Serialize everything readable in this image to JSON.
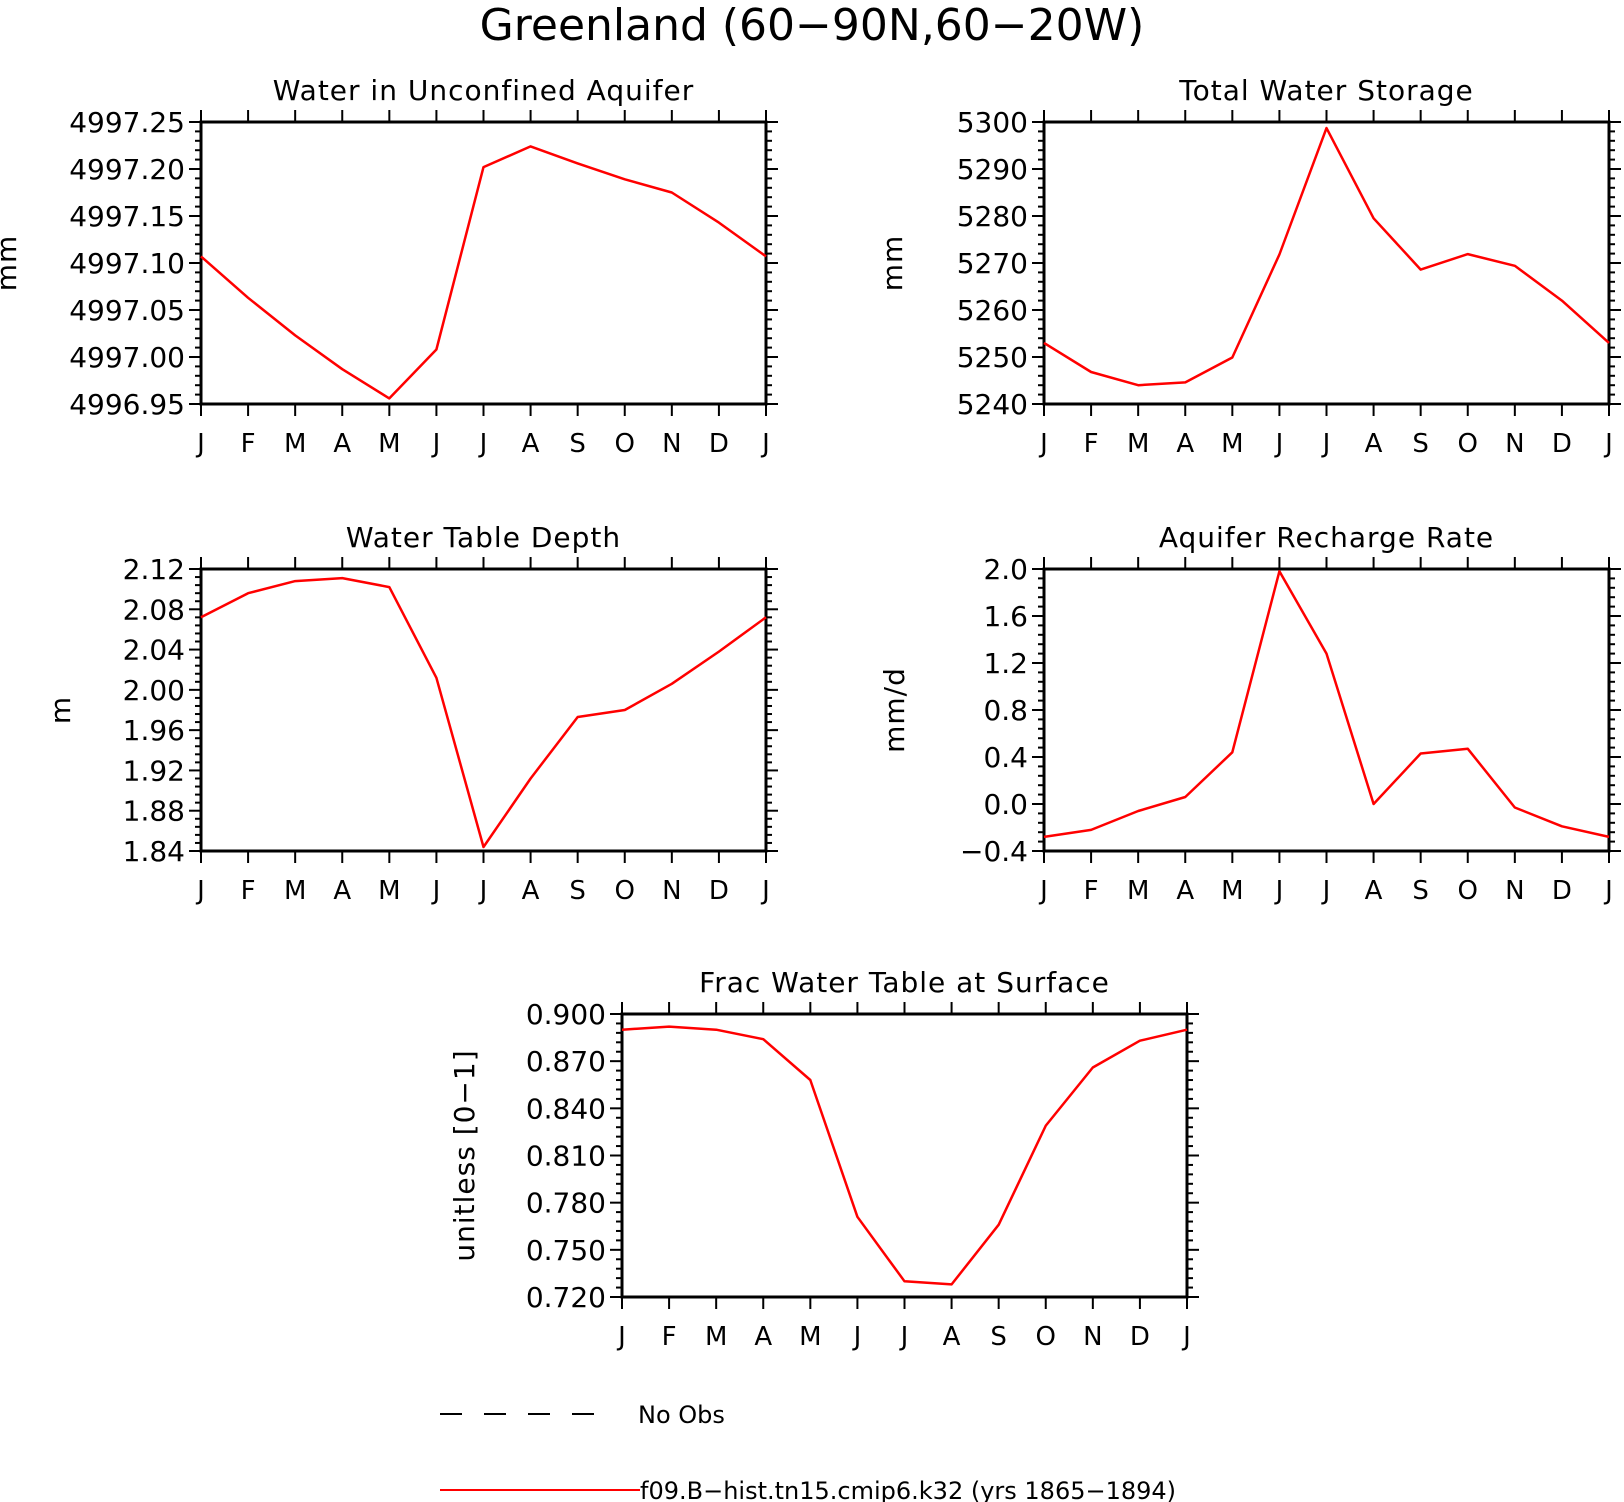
{
  "page_title": "Greenland (60−90N,60−20W)",
  "months": [
    "J",
    "F",
    "M",
    "A",
    "M",
    "J",
    "J",
    "A",
    "S",
    "O",
    "N",
    "D",
    "J"
  ],
  "colors": {
    "model_line": "#ff0000",
    "obs_line": "#000000",
    "axis": "#000000"
  },
  "legend": {
    "obs_label": "No Obs",
    "model_label": "f09.B−hist.tn15.cmip6.k32 (yrs 1865−1894)"
  },
  "chart_data": [
    {
      "type": "line",
      "title": "Water in Unconfined Aquifer",
      "xlabel": "",
      "ylabel": "mm",
      "ylim": [
        4996.95,
        4997.25
      ],
      "yticks": [
        4996.95,
        4997.0,
        4997.05,
        4997.1,
        4997.15,
        4997.2,
        4997.25
      ],
      "ytick_labels": [
        "4996.95",
        "4997.00",
        "4997.05",
        "4997.10",
        "4997.15",
        "4997.20",
        "4997.25"
      ],
      "categories": [
        "J",
        "F",
        "M",
        "A",
        "M",
        "J",
        "J",
        "A",
        "S",
        "O",
        "N",
        "D",
        "J"
      ],
      "series": [
        {
          "name": "f09.B−hist.tn15.cmip6.k32 (yrs 1865−1894)",
          "values": [
            4997.107,
            4997.063,
            4997.023,
            4996.987,
            4996.956,
            4997.008,
            4997.202,
            4997.224,
            4997.206,
            4997.189,
            4997.175,
            4997.143,
            4997.107
          ]
        }
      ],
      "grid": false
    },
    {
      "type": "line",
      "title": "Total Water Storage",
      "xlabel": "",
      "ylabel": "mm",
      "ylim": [
        5240,
        5300
      ],
      "yticks": [
        5240,
        5250,
        5260,
        5270,
        5280,
        5290,
        5300
      ],
      "ytick_labels": [
        "5240",
        "5250",
        "5260",
        "5270",
        "5280",
        "5290",
        "5300"
      ],
      "categories": [
        "J",
        "F",
        "M",
        "A",
        "M",
        "J",
        "J",
        "A",
        "S",
        "O",
        "N",
        "D",
        "J"
      ],
      "series": [
        {
          "name": "f09.B−hist.tn15.cmip6.k32 (yrs 1865−1894)",
          "values": [
            5253.0,
            5246.8,
            5244.0,
            5244.6,
            5249.9,
            5271.8,
            5298.7,
            5279.5,
            5268.6,
            5271.9,
            5269.4,
            5262.0,
            5253.0
          ]
        }
      ],
      "grid": false
    },
    {
      "type": "line",
      "title": "Water Table Depth",
      "xlabel": "",
      "ylabel": "m",
      "ylim": [
        1.84,
        2.12
      ],
      "yticks": [
        1.84,
        1.88,
        1.92,
        1.96,
        2.0,
        2.04,
        2.08,
        2.12
      ],
      "ytick_labels": [
        "1.84",
        "1.88",
        "1.92",
        "1.96",
        "2.00",
        "2.04",
        "2.08",
        "2.12"
      ],
      "categories": [
        "J",
        "F",
        "M",
        "A",
        "M",
        "J",
        "J",
        "A",
        "S",
        "O",
        "N",
        "D",
        "J"
      ],
      "series": [
        {
          "name": "f09.B−hist.tn15.cmip6.k32 (yrs 1865−1894)",
          "values": [
            2.072,
            2.096,
            2.108,
            2.111,
            2.102,
            2.012,
            1.844,
            1.912,
            1.973,
            1.98,
            2.006,
            2.038,
            2.072
          ]
        }
      ],
      "grid": false
    },
    {
      "type": "line",
      "title": "Aquifer Recharge Rate",
      "xlabel": "",
      "ylabel": "mm/d",
      "ylim": [
        -0.4,
        2.0
      ],
      "yticks": [
        -0.4,
        0.0,
        0.4,
        0.8,
        1.2,
        1.6,
        2.0
      ],
      "ytick_labels": [
        "−0.4",
        "0.0",
        "0.4",
        "0.8",
        "1.2",
        "1.6",
        "2.0"
      ],
      "categories": [
        "J",
        "F",
        "M",
        "A",
        "M",
        "J",
        "J",
        "A",
        "S",
        "O",
        "N",
        "D",
        "J"
      ],
      "series": [
        {
          "name": "f09.B−hist.tn15.cmip6.k32 (yrs 1865−1894)",
          "values": [
            -0.28,
            -0.22,
            -0.06,
            0.06,
            0.44,
            1.98,
            1.28,
            0.0,
            0.43,
            0.47,
            -0.03,
            -0.19,
            -0.28
          ]
        }
      ],
      "grid": false
    },
    {
      "type": "line",
      "title": "Frac Water Table at Surface",
      "xlabel": "",
      "ylabel": "unitless [0−1]",
      "ylim": [
        0.72,
        0.9
      ],
      "yticks": [
        0.72,
        0.75,
        0.78,
        0.81,
        0.84,
        0.87,
        0.9
      ],
      "ytick_labels": [
        "0.720",
        "0.750",
        "0.780",
        "0.810",
        "0.840",
        "0.870",
        "0.900"
      ],
      "categories": [
        "J",
        "F",
        "M",
        "A",
        "M",
        "J",
        "J",
        "A",
        "S",
        "O",
        "N",
        "D",
        "J"
      ],
      "series": [
        {
          "name": "f09.B−hist.tn15.cmip6.k32 (yrs 1865−1894)",
          "values": [
            0.89,
            0.892,
            0.89,
            0.884,
            0.858,
            0.771,
            0.73,
            0.728,
            0.766,
            0.829,
            0.866,
            0.883,
            0.89
          ]
        }
      ],
      "grid": false
    }
  ]
}
